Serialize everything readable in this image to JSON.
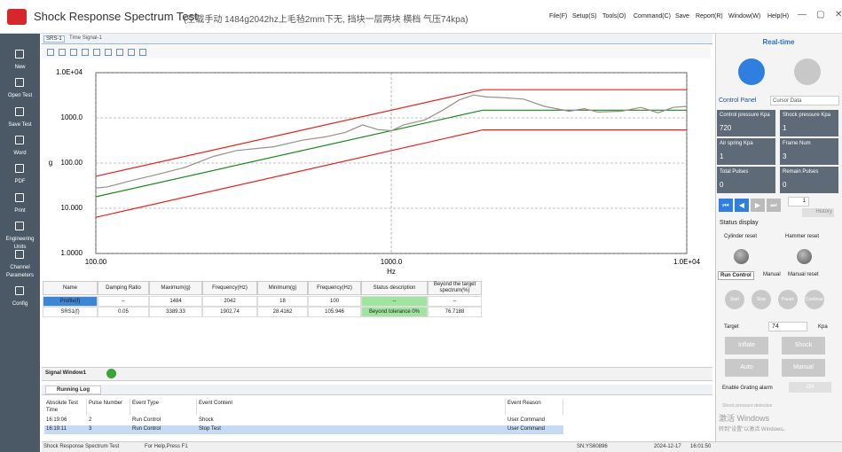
{
  "app": {
    "title": "Shock Response Spectrum Test",
    "subtitle": "(空载手动 1484g2042hz上毛毡2mm下无, 挡块一层两块 横档 气压74kpa)",
    "menu": [
      "File(F)",
      "Setup(S)",
      "Tools(O)",
      "Command(C)",
      "Save",
      "Report(R)",
      "Window(W)",
      "Help(H)"
    ]
  },
  "sidebar": [
    "New",
    "Open Test",
    "Save Test",
    "Word",
    "PDF",
    "Print",
    "Engineering Units",
    "Channel Parameters",
    "Config"
  ],
  "tabs": [
    "SRS-1",
    "Time Signal-1"
  ],
  "chart": {
    "type": "line",
    "xlabel": "Hz",
    "ylabel": "g",
    "log_x": true,
    "log_y": true,
    "grid": true,
    "xlim": [
      100,
      10000
    ],
    "ylim": [
      1,
      10000
    ],
    "xticks": [
      {
        "value": 100,
        "label": "100.00"
      },
      {
        "value": 1000,
        "label": "1000.0"
      },
      {
        "value": 10000,
        "label": "1.0E+04"
      }
    ],
    "yticks": [
      {
        "value": 1,
        "label": "1.0000"
      },
      {
        "value": 10,
        "label": "10.000"
      },
      {
        "value": 100,
        "label": "100.00"
      },
      {
        "value": 1000,
        "label": "1000.0"
      },
      {
        "value": 10000,
        "label": "1.0E+04"
      }
    ],
    "series": [
      {
        "color": "#e8201c",
        "x": [
          100,
          2042,
          10000
        ],
        "values": [
          51,
          4200,
          4200
        ]
      },
      {
        "color": "#1a8a1a",
        "x": [
          100,
          2042,
          10000
        ],
        "values": [
          18,
          1484,
          1484
        ]
      },
      {
        "color": "#e8201c",
        "x": [
          100,
          2042,
          10000
        ],
        "values": [
          6.3,
          540,
          540
        ]
      },
      {
        "color": "#9a8f88",
        "x": [
          100,
          110,
          130,
          160,
          200,
          250,
          300,
          400,
          500,
          600,
          700,
          800,
          900,
          1000,
          1100,
          1300,
          1500,
          1700,
          1900,
          2100,
          2400,
          2800,
          3300,
          4000,
          4500,
          5000,
          6000,
          7000,
          8000,
          9000,
          10000
        ],
        "values": [
          28,
          30,
          40,
          55,
          80,
          140,
          190,
          230,
          320,
          380,
          480,
          700,
          550,
          520,
          700,
          900,
          1500,
          2500,
          3200,
          2900,
          2800,
          2600,
          1800,
          1400,
          1600,
          1350,
          1400,
          1700,
          1300,
          1700,
          1800
        ]
      }
    ]
  },
  "results_table": {
    "columns": [
      "Name",
      "Damping Ratio",
      "Maximum(g)",
      "Frequency(Hz)",
      "Minimum(g)",
      "Frequency(Hz)",
      "Status description",
      "Beyond the target spectrum(%)"
    ],
    "rows": [
      [
        "Profile(f)",
        "--",
        "1484",
        "2042",
        "18",
        "100",
        "--",
        "--"
      ],
      [
        "SRS1(f)",
        "0.05",
        "3389.33",
        "1902.74",
        "28.4162",
        "105.946",
        "Beyond tolerance 0%",
        "76.7188"
      ]
    ]
  },
  "signal_window": "Signal Window1",
  "log": {
    "tab": "Running Log",
    "columns": [
      "Absolute Test Time",
      "Pulse Number",
      "Event Type",
      "Event Content",
      "Event Reason"
    ],
    "rows": [
      [
        "16:19:06",
        "2",
        "Run Control",
        "Shock",
        "User Command"
      ],
      [
        "16:19:11",
        "3",
        "Run Control",
        "Stop Test",
        "User Command"
      ]
    ]
  },
  "realtime": {
    "title": "Real-time",
    "control_panel": "Control Panel",
    "cursor": "Cursor Data",
    "cells": [
      {
        "label": "Control pressure Kpa",
        "value": "720"
      },
      {
        "label": "Shock pressure Kpa",
        "value": "1"
      },
      {
        "label": "Air spring Kpa",
        "value": "1"
      },
      {
        "label": "Frame Num",
        "value": "3"
      },
      {
        "label": "Total Pulses",
        "value": "0"
      },
      {
        "label": "Remain Pulses",
        "value": "0"
      }
    ],
    "nav_value": "1",
    "history": "History",
    "status_display": "Status display",
    "cylinder": "Cylinder reset",
    "hammer": "Hammer reset",
    "run_tabs": [
      "Run Control",
      "Manual",
      "Manual reset"
    ],
    "run_buttons": [
      "Start",
      "Stop",
      "Pause",
      "Continue"
    ],
    "target_label": "Target",
    "target_value": "74",
    "target_unit": "Kpa",
    "action_buttons": [
      "Inflate",
      "Shock",
      "Auto",
      "Manual"
    ],
    "grating_label": "Enable Grating alarm",
    "grating_toggle": "ON",
    "shock_detection": "Shock pressure detection"
  },
  "watermark": [
    "激活 Windows",
    "转到\"设置\"以激活 Windows。"
  ],
  "status_bar": [
    "Shock Response Spectrum Test",
    "For Help,Press F1",
    "SN:YS60896",
    "2024-12-17",
    "16:01:50"
  ]
}
